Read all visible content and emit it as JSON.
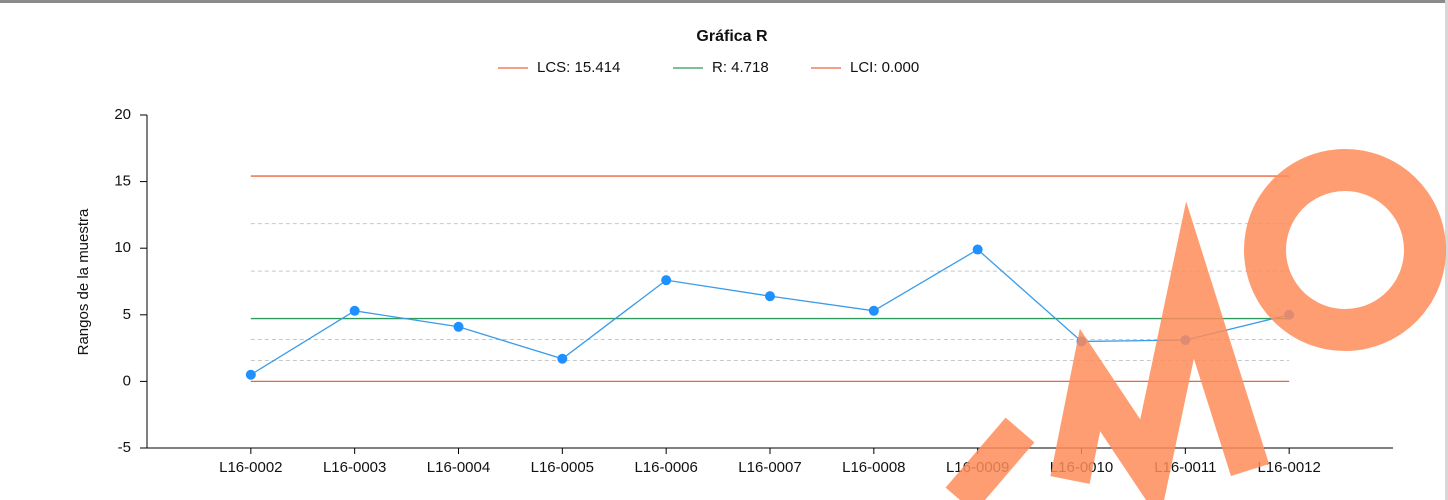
{
  "chart_data": {
    "type": "line",
    "title": "Gráfica R",
    "y_label": "Rangos de la muestra",
    "categories": [
      "L16-0002",
      "L16-0003",
      "L16-0004",
      "L16-0005",
      "L16-0006",
      "L16-0007",
      "L16-0008",
      "L16-0009",
      "L16-0010",
      "L16-0011",
      "L16-0012"
    ],
    "series": [
      {
        "color": "#3a9be8",
        "marker_color": "#1e90ff",
        "values": [
          0.5,
          5.3,
          4.1,
          1.7,
          7.6,
          6.4,
          5.3,
          9.9,
          3.0,
          3.1,
          5.0
        ]
      }
    ],
    "control_lines": [
      {
        "label": "LCS: 15.414",
        "value": 15.414,
        "color": "#f0643c"
      },
      {
        "label": "R: 4.718",
        "value": 4.718,
        "color": "#2e9a5e"
      },
      {
        "label": "LCI: 0.000",
        "value": 0.0,
        "color": "#f0643c"
      }
    ],
    "zone_lines": [
      11.848,
      8.283,
      3.145,
      1.573
    ],
    "ylim": [
      -5,
      20
    ],
    "yticks": [
      -5,
      0,
      5,
      10,
      15,
      20
    ]
  }
}
